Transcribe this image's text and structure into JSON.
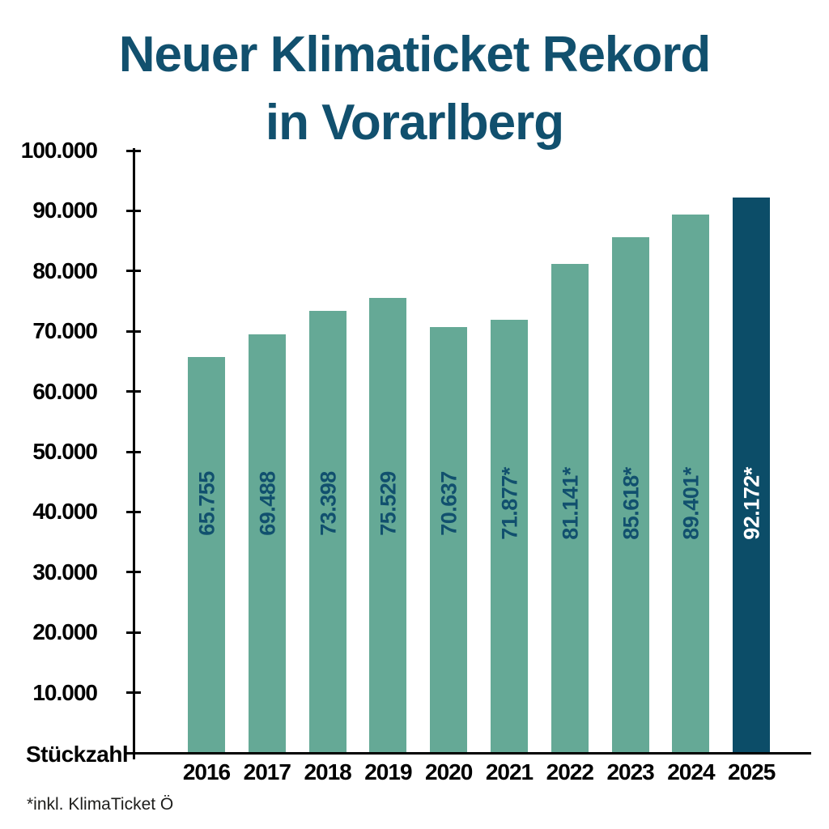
{
  "title": {
    "line1": "Neuer Klimaticket Rekord",
    "line2": "in Vorarlberg"
  },
  "chart_data": {
    "type": "bar",
    "title": "Neuer Klimaticket Rekord in Vorarlberg",
    "categories": [
      "2016",
      "2017",
      "2018",
      "2019",
      "2020",
      "2021",
      "2022",
      "2023",
      "2024",
      "2025"
    ],
    "values": [
      65755,
      69488,
      73398,
      75529,
      70637,
      71877,
      81141,
      85618,
      89401,
      92172
    ],
    "bar_labels": [
      "65.755",
      "69.488",
      "73.398",
      "75.529",
      "70.637",
      "71.877*",
      "81.141*",
      "85.618*",
      "89.401*",
      "92.172*"
    ],
    "highlight_index": 9,
    "xlabel": "",
    "ylabel": "Stückzahl",
    "ylim": [
      0,
      100000
    ],
    "ytick_step": 10000,
    "ytick_labels": [
      "10.000",
      "20.000",
      "30.000",
      "40.000",
      "50.000",
      "60.000",
      "70.000",
      "80.000",
      "90.000",
      "100.000"
    ],
    "grid": false,
    "legend": "none",
    "colors": {
      "bar": "#65a996",
      "highlight_bar": "#0c4d68",
      "bar_label_text": "#11506e",
      "highlight_bar_label_text": "#ffffff",
      "title_text": "#11506e",
      "axis": "#000000",
      "year_text": "#000000",
      "footnote_text": "#1d1d1b"
    }
  },
  "footnote": "*inkl. KlimaTicket Ö"
}
